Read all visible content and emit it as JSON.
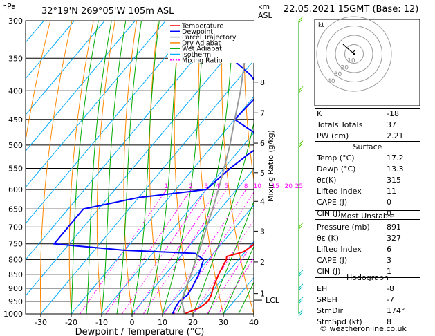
{
  "header": {
    "pressure_unit": "hPa",
    "location": "32°19'N  269°05'W  105m  ASL",
    "height_unit": "km\nASL",
    "datetime": "22.05.2021  15GMT  (Base: 12)"
  },
  "chart_data": {
    "type": "line",
    "title": "32°19'N  269°05'W  105m  ASL",
    "xlabel": "Dewpoint / Temperature (°C)",
    "ylabel": "hPa",
    "mixing_axis_label": "Mixing Ratio (g/kg)",
    "xlim": [
      -35,
      40
    ],
    "ylim": [
      1000,
      300
    ],
    "pressure_ticks": [
      300,
      350,
      400,
      450,
      500,
      550,
      600,
      650,
      700,
      750,
      800,
      850,
      900,
      950,
      1000
    ],
    "temp_ticks": [
      -30,
      -20,
      -10,
      0,
      10,
      20,
      30,
      40
    ],
    "height_ticks": [
      {
        "km": "1",
        "p": 920
      },
      {
        "km": "2",
        "p": 808
      },
      {
        "km": "3",
        "p": 712
      },
      {
        "km": "4",
        "p": 630
      },
      {
        "km": "5",
        "p": 560
      },
      {
        "km": "6",
        "p": 496
      },
      {
        "km": "7",
        "p": 438
      },
      {
        "km": "8",
        "p": 386
      }
    ],
    "lcl": {
      "label": "LCL",
      "p": 945
    },
    "mixing_ratio_labels": [
      "1",
      "2",
      "3",
      "4",
      "5",
      "8",
      "10",
      "15",
      "20",
      "25"
    ],
    "mixing_ratios": [
      1,
      2,
      3,
      4,
      5,
      8,
      10,
      15,
      20,
      25
    ],
    "legend": [
      {
        "name": "Temperature",
        "color": "#ff0000"
      },
      {
        "name": "Dewpoint",
        "color": "#0000ff"
      },
      {
        "name": "Parcel Trajectory",
        "color": "#999999"
      },
      {
        "name": "Dry Adiabat",
        "color": "#ff8800"
      },
      {
        "name": "Wet Adiabat",
        "color": "#00aa00"
      },
      {
        "name": "Isotherm",
        "color": "#00aaff"
      },
      {
        "name": "Mixing Ratio",
        "color": "#ff00ff"
      }
    ],
    "series": [
      {
        "name": "Temperature",
        "color": "#ff0000",
        "points": [
          [
            1000,
            17.2
          ],
          [
            975,
            20.5
          ],
          [
            950,
            21.5
          ],
          [
            925,
            20.8
          ],
          [
            900,
            19.5
          ],
          [
            850,
            17.5
          ],
          [
            800,
            16.0
          ],
          [
            790,
            15.2
          ],
          [
            775,
            19.5
          ],
          [
            750,
            21.0
          ],
          [
            700,
            18.0
          ],
          [
            650,
            14.5
          ],
          [
            600,
            11.0
          ],
          [
            550,
            7.0
          ],
          [
            500,
            1.5
          ],
          [
            450,
            -5.0
          ],
          [
            400,
            -12.5
          ],
          [
            350,
            -20.0
          ],
          [
            300,
            -29.5
          ]
        ]
      },
      {
        "name": "Dewpoint",
        "color": "#0000ff",
        "points": [
          [
            1000,
            13.3
          ],
          [
            975,
            12.5
          ],
          [
            950,
            12.0
          ],
          [
            925,
            13.0
          ],
          [
            900,
            12.5
          ],
          [
            850,
            11.0
          ],
          [
            800,
            8.5
          ],
          [
            780,
            4.0
          ],
          [
            770,
            -20.0
          ],
          [
            750,
            -45.0
          ],
          [
            700,
            -45.0
          ],
          [
            650,
            -45.0
          ],
          [
            620,
            -30.0
          ],
          [
            600,
            -10.0
          ],
          [
            550,
            -8.0
          ],
          [
            520,
            -6.0
          ],
          [
            500,
            -4.0
          ],
          [
            480,
            -8.0
          ],
          [
            450,
            -20.0
          ],
          [
            400,
            -19.0
          ],
          [
            375,
            -27.0
          ],
          [
            350,
            -38.0
          ],
          [
            340,
            -55.0
          ],
          [
            300,
            -52.0
          ]
        ]
      },
      {
        "name": "Parcel Trajectory",
        "color": "#999999",
        "points": [
          [
            1000,
            17.2
          ],
          [
            945,
            12.5
          ],
          [
            900,
            10.5
          ],
          [
            850,
            8.5
          ],
          [
            800,
            6.0
          ],
          [
            750,
            3.5
          ],
          [
            700,
            0.5
          ],
          [
            650,
            -2.5
          ],
          [
            600,
            -6.0
          ],
          [
            550,
            -10.0
          ],
          [
            500,
            -14.5
          ],
          [
            450,
            -20.0
          ],
          [
            400,
            -26.0
          ],
          [
            350,
            -33.5
          ],
          [
            300,
            -42.0
          ]
        ]
      }
    ]
  },
  "indices": [
    {
      "label": "K",
      "value": "-18"
    },
    {
      "label": "Totals Totals",
      "value": "37"
    },
    {
      "label": "PW (cm)",
      "value": "2.21"
    }
  ],
  "surface": {
    "title": "Surface",
    "rows": [
      {
        "label": "Temp (°C)",
        "value": "17.2"
      },
      {
        "label": "Dewp (°C)",
        "value": "13.3"
      },
      {
        "label": "θε(K)",
        "value": "315"
      },
      {
        "label": "Lifted Index",
        "value": "11"
      },
      {
        "label": "CAPE (J)",
        "value": "0"
      },
      {
        "label": "CIN (J)",
        "value": "0"
      }
    ]
  },
  "most_unstable": {
    "title": "Most Unstable",
    "rows": [
      {
        "label": "Pressure (mb)",
        "value": "891"
      },
      {
        "label": "θε (K)",
        "value": "327"
      },
      {
        "label": "Lifted Index",
        "value": "6"
      },
      {
        "label": "CAPE (J)",
        "value": "3"
      },
      {
        "label": "CIN (J)",
        "value": "1"
      }
    ]
  },
  "hodograph_table": {
    "title": "Hodograph",
    "rows": [
      {
        "label": "EH",
        "value": "-8"
      },
      {
        "label": "SREH",
        "value": "-7"
      },
      {
        "label": "StmDir",
        "value": "174°"
      },
      {
        "label": "StmSpd (kt)",
        "value": "8"
      }
    ]
  },
  "hodograph": {
    "unit_label": "kt",
    "ring_labels": [
      "10",
      "20",
      "30",
      "40"
    ]
  },
  "copyright": "© weatheronline.co.uk"
}
